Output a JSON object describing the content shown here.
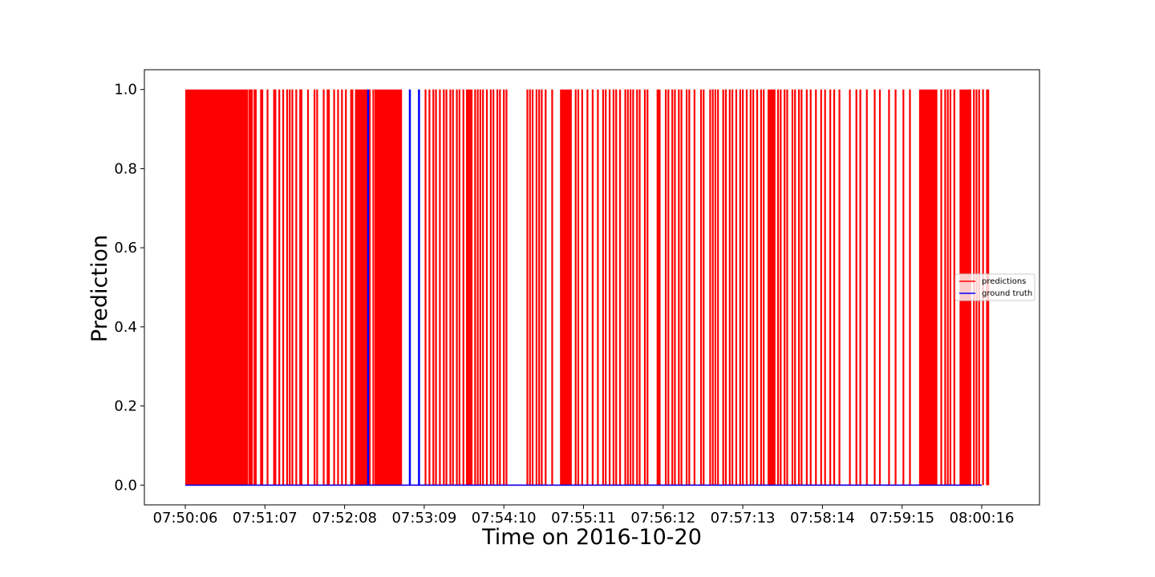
{
  "chart_data": {
    "type": "line",
    "title": "",
    "xlabel": "Time on 2016-10-20",
    "ylabel": "Prediction",
    "x_range": [
      "07:50:06",
      "08:00:16"
    ],
    "ylim": [
      -0.05,
      1.05
    ],
    "x_tick_labels": [
      "07:50:06",
      "07:51:07",
      "07:52:08",
      "07:53:09",
      "07:54:10",
      "07:55:11",
      "07:56:12",
      "07:57:13",
      "07:58:14",
      "07:59:15",
      "08:00:16"
    ],
    "y_ticks": [
      0.0,
      0.2,
      0.4,
      0.6,
      0.8,
      1.0
    ],
    "y_tick_labels": [
      "0.0",
      "0.2",
      "0.4",
      "0.6",
      "0.8",
      "1.0"
    ],
    "grid": false,
    "legend_position": "center-right",
    "series": [
      {
        "name": "predictions",
        "color": "#ff0000",
        "description_of_values": "binary 0/1",
        "dense_spans": [
          [
            "07:50:06",
            "07:50:54"
          ],
          [
            "07:52:16",
            "07:52:28"
          ],
          [
            "07:52:31",
            "07:52:52"
          ],
          [
            "07:53:41",
            "07:53:46"
          ],
          [
            "07:54:53",
            "07:55:02"
          ],
          [
            "07:56:07",
            "07:56:10"
          ],
          [
            "07:57:32",
            "07:57:38"
          ],
          [
            "07:59:28",
            "07:59:42"
          ],
          [
            "07:59:59",
            "08:00:08"
          ]
        ],
        "spike_times": [
          "07:50:55",
          "07:50:56",
          "07:50:57",
          "07:50:59",
          "07:51:00",
          "07:51:04",
          "07:51:05",
          "07:51:09",
          "07:51:14",
          "07:51:15",
          "07:51:18",
          "07:51:21",
          "07:51:24",
          "07:51:26",
          "07:51:28",
          "07:51:31",
          "07:51:34",
          "07:51:35",
          "07:51:40",
          "07:51:45",
          "07:51:47",
          "07:51:52",
          "07:51:55",
          "07:51:56",
          "07:52:00",
          "07:52:03",
          "07:52:06",
          "07:52:09",
          "07:52:13",
          "07:52:14",
          "07:52:30",
          "07:53:10",
          "07:53:13",
          "07:53:16",
          "07:53:18",
          "07:53:21",
          "07:53:24",
          "07:53:26",
          "07:53:29",
          "07:53:31",
          "07:53:34",
          "07:53:36",
          "07:53:39",
          "07:53:48",
          "07:53:50",
          "07:53:52",
          "07:53:54",
          "07:53:57",
          "07:54:00",
          "07:54:02",
          "07:54:05",
          "07:54:07",
          "07:54:10",
          "07:54:12",
          "07:54:28",
          "07:54:30",
          "07:54:32",
          "07:54:35",
          "07:54:37",
          "07:54:39",
          "07:54:42",
          "07:54:47",
          "07:55:05",
          "07:55:07",
          "07:55:10",
          "07:55:14",
          "07:55:18",
          "07:55:22",
          "07:55:26",
          "07:55:28",
          "07:55:31",
          "07:55:34",
          "07:55:36",
          "07:55:39",
          "07:55:43",
          "07:55:45",
          "07:55:47",
          "07:55:49",
          "07:55:52",
          "07:55:54",
          "07:55:58",
          "07:56:00",
          "07:56:14",
          "07:56:16",
          "07:56:19",
          "07:56:21",
          "07:56:24",
          "07:56:26",
          "07:56:30",
          "07:56:32",
          "07:56:36",
          "07:56:41",
          "07:56:43",
          "07:56:48",
          "07:56:50",
          "07:56:52",
          "07:56:54",
          "07:56:58",
          "07:57:00",
          "07:57:03",
          "07:57:05",
          "07:57:08",
          "07:57:11",
          "07:57:13",
          "07:57:16",
          "07:57:19",
          "07:57:21",
          "07:57:24",
          "07:57:27",
          "07:57:29",
          "07:57:40",
          "07:57:42",
          "07:57:45",
          "07:57:47",
          "07:57:51",
          "07:57:53",
          "07:57:56",
          "07:57:58",
          "07:58:02",
          "07:58:05",
          "07:58:09",
          "07:58:13",
          "07:58:16",
          "07:58:20",
          "07:58:23",
          "07:58:27",
          "07:58:35",
          "07:58:40",
          "07:58:43",
          "07:58:48",
          "07:58:54",
          "07:58:58",
          "07:59:05",
          "07:59:10",
          "07:59:16",
          "07:59:21",
          "07:59:45",
          "07:59:48",
          "07:59:50",
          "07:59:52",
          "07:59:55",
          "08:00:10",
          "08:00:12",
          "08:00:14",
          "08:00:17",
          "08:00:20",
          "08:00:21"
        ]
      },
      {
        "name": "ground truth",
        "color": "#0000ff",
        "description_of_values": "0 everywhere except three 1-valued spikes",
        "baseline": 0,
        "spike_times": [
          "07:52:26",
          "07:52:58",
          "07:53:05"
        ]
      }
    ]
  }
}
